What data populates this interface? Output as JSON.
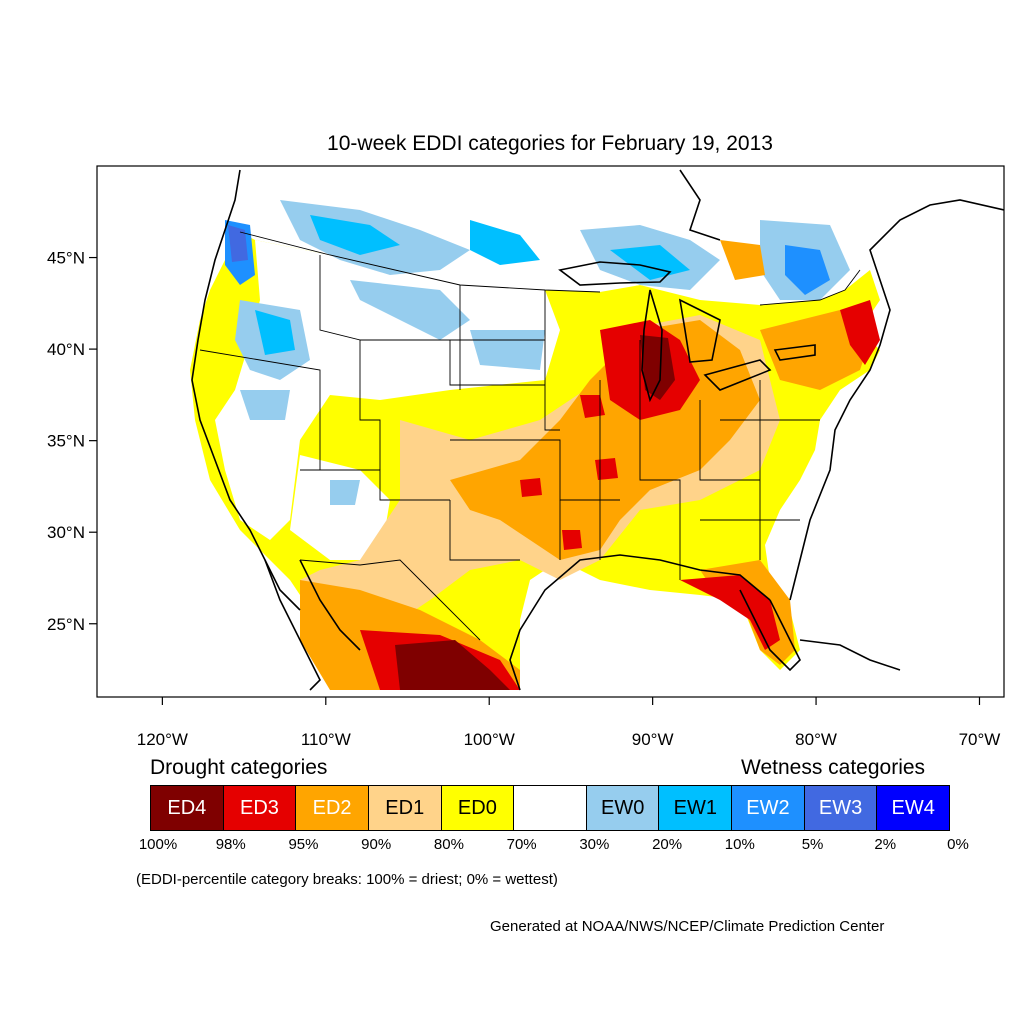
{
  "title": "10-week EDDI categories for February 19, 2013",
  "lat_labels": [
    {
      "lat": 45,
      "text": "45°N"
    },
    {
      "lat": 40,
      "text": "40°N"
    },
    {
      "lat": 35,
      "text": "35°N"
    },
    {
      "lat": 30,
      "text": "30°N"
    },
    {
      "lat": 25,
      "text": "25°N"
    }
  ],
  "lon_labels": [
    {
      "lon": -120,
      "text": "120°W"
    },
    {
      "lon": -110,
      "text": "110°W"
    },
    {
      "lon": -100,
      "text": "100°W"
    },
    {
      "lon": -90,
      "text": "90°W"
    },
    {
      "lon": -80,
      "text": "80°W"
    },
    {
      "lon": -70,
      "text": "70°W"
    }
  ],
  "map_extent": {
    "lon_min": -124,
    "lon_max": -68.5,
    "lat_min": 21,
    "lat_max": 50
  },
  "legend": {
    "drought_heading": "Drought categories",
    "wetness_heading": "Wetness categories",
    "categories": [
      {
        "label": "ED4",
        "color": "#7f0000",
        "text_color": "#ffffff"
      },
      {
        "label": "ED3",
        "color": "#e50000",
        "text_color": "#ffffff"
      },
      {
        "label": "ED2",
        "color": "#ffa500",
        "text_color": "#ffffff"
      },
      {
        "label": "ED1",
        "color": "#ffd38a",
        "text_color": "#000000"
      },
      {
        "label": "ED0",
        "color": "#ffff00",
        "text_color": "#000000"
      },
      {
        "label": "",
        "color": "#ffffff",
        "text_color": "#000000"
      },
      {
        "label": "EW0",
        "color": "#96cdee",
        "text_color": "#000000"
      },
      {
        "label": "EW1",
        "color": "#00bfff",
        "text_color": "#000000"
      },
      {
        "label": "EW2",
        "color": "#1e90ff",
        "text_color": "#ffffff"
      },
      {
        "label": "EW3",
        "color": "#4169e1",
        "text_color": "#ffffff"
      },
      {
        "label": "EW4",
        "color": "#0000ff",
        "text_color": "#ffffff"
      }
    ],
    "breaks": [
      "100%",
      "98%",
      "95%",
      "90%",
      "80%",
      "70%",
      "30%",
      "20%",
      "10%",
      "5%",
      "2%",
      "0%"
    ]
  },
  "note": "(EDDI-percentile category breaks: 100% = driest; 0% = wettest)",
  "credit": "Generated at NOAA/NWS/NCEP/Climate Prediction Center"
}
